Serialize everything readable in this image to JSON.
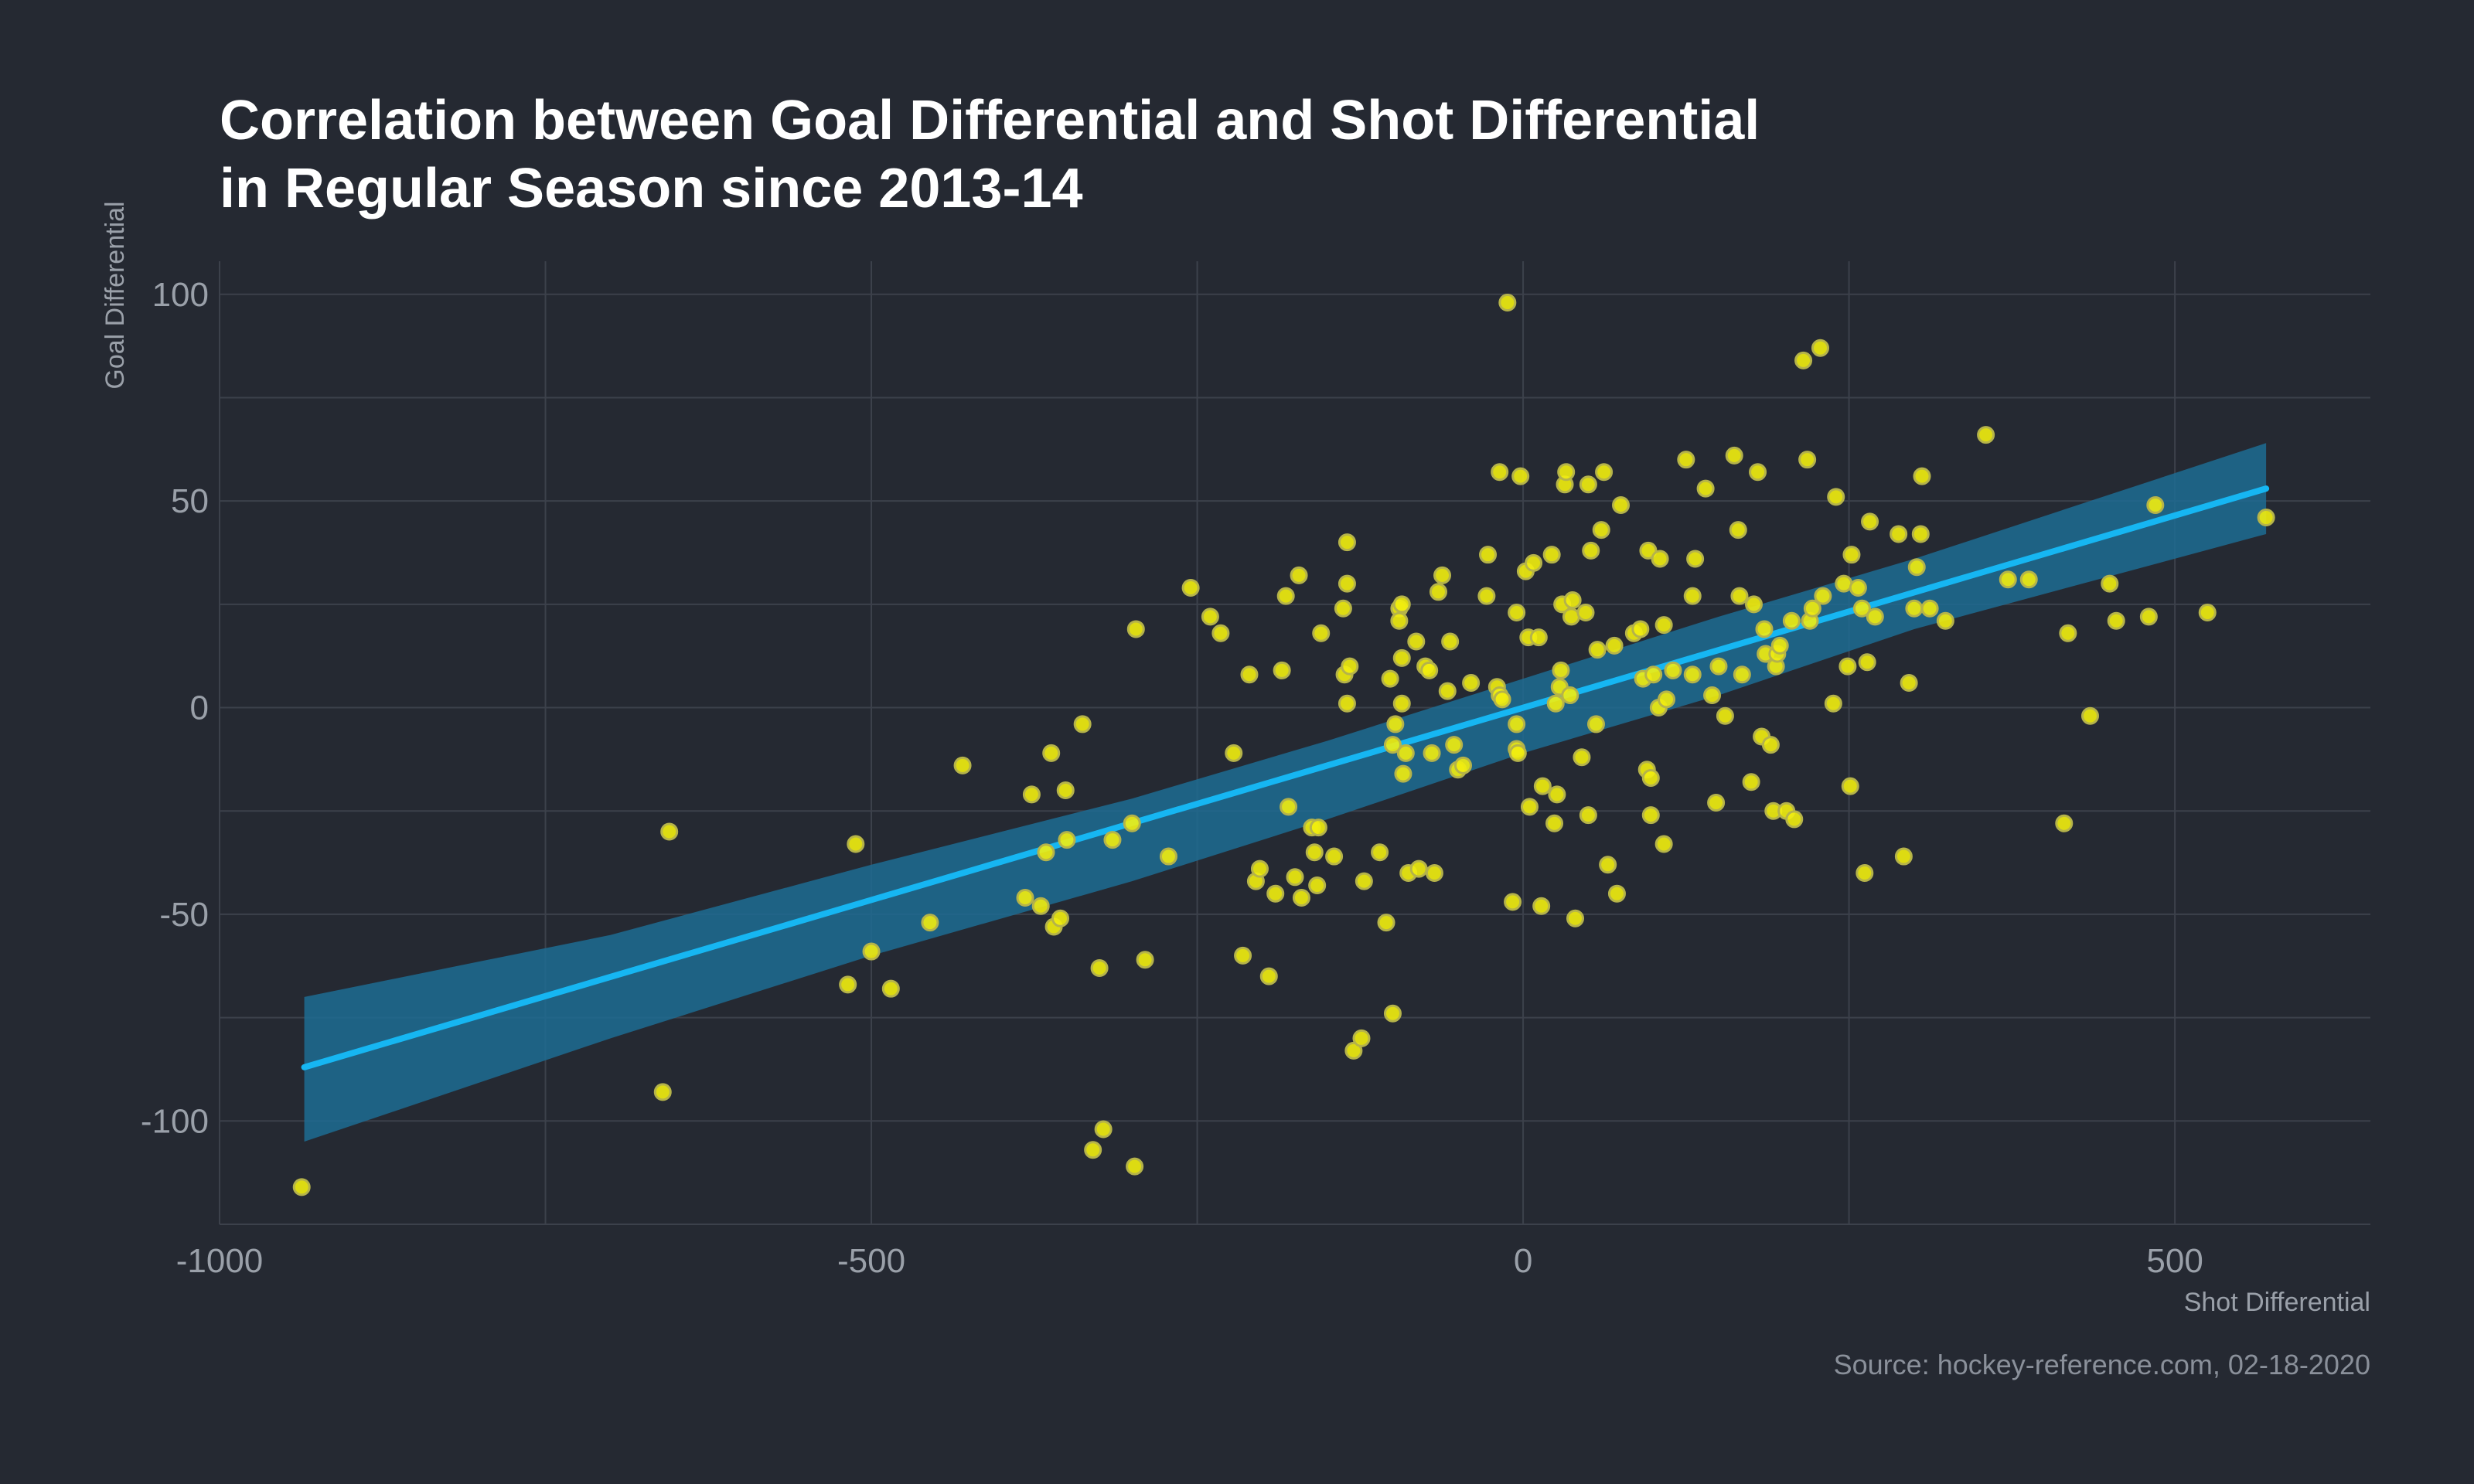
{
  "chart_data": {
    "type": "scatter",
    "title": "Correlation between Goal Differential and Shot Differential",
    "subtitle": "in Regular Season since 2013-14",
    "xlabel": "Shot Differential",
    "ylabel": "Goal Differential",
    "caption": "Source: hockey-reference.com, 02-18-2020",
    "xlim": [
      -1000,
      650
    ],
    "ylim": [
      -125,
      108
    ],
    "xticks": [
      -1000,
      -500,
      0,
      500
    ],
    "yticks": [
      100,
      50,
      0,
      -50,
      -100
    ],
    "grid": true,
    "colors": {
      "background": "#252932",
      "grid": "#3c414b",
      "points": "#f2ee0e",
      "point_outline": "#b5b34a",
      "trend": "#16b6f2",
      "band": "#1d6c93"
    },
    "points": [
      [
        -937,
        -116
      ],
      [
        -655,
        -30
      ],
      [
        -660,
        -93
      ],
      [
        -512,
        -33
      ],
      [
        -518,
        -67
      ],
      [
        -500,
        -59
      ],
      [
        -485,
        -68
      ],
      [
        -455,
        -52
      ],
      [
        -430,
        -14
      ],
      [
        -377,
        -21
      ],
      [
        -362,
        -11
      ],
      [
        -351,
        -20
      ],
      [
        -338,
        -4
      ],
      [
        -330,
        -107
      ],
      [
        -325,
        -63
      ],
      [
        -322,
        -102
      ],
      [
        -315,
        -32
      ],
      [
        -298,
        -111
      ],
      [
        -297,
        19
      ],
      [
        -290,
        -61
      ],
      [
        -370,
        -48
      ],
      [
        -382,
        -46
      ],
      [
        -366,
        -35
      ],
      [
        -360,
        -53
      ],
      [
        -350,
        -32
      ],
      [
        -300,
        -28
      ],
      [
        -355,
        -51
      ],
      [
        -272,
        -36
      ],
      [
        -255,
        29
      ],
      [
        -240,
        22
      ],
      [
        -232,
        18
      ],
      [
        -222,
        -11
      ],
      [
        -215,
        -60
      ],
      [
        -210,
        8
      ],
      [
        -205,
        -42
      ],
      [
        -202,
        -39
      ],
      [
        -195,
        -65
      ],
      [
        -190,
        -45
      ],
      [
        -185,
        9
      ],
      [
        -182,
        27
      ],
      [
        -180,
        -24
      ],
      [
        -175,
        -41
      ],
      [
        -172,
        32
      ],
      [
        -170,
        -46
      ],
      [
        -162,
        -29
      ],
      [
        -160,
        -35
      ],
      [
        -158,
        -43
      ],
      [
        -155,
        18
      ],
      [
        -157,
        -29
      ],
      [
        -145,
        -36
      ],
      [
        -138,
        24
      ],
      [
        -135,
        40
      ],
      [
        -135,
        30
      ],
      [
        -137,
        8
      ],
      [
        -135,
        1
      ],
      [
        -133,
        10
      ],
      [
        -130,
        -83
      ],
      [
        -124,
        -80
      ],
      [
        -122,
        -42
      ],
      [
        -110,
        -35
      ],
      [
        -105,
        -52
      ],
      [
        -102,
        7
      ],
      [
        -100,
        -74
      ],
      [
        -100,
        -9
      ],
      [
        -98,
        -4
      ],
      [
        -95,
        24
      ],
      [
        -93,
        25
      ],
      [
        -95,
        21
      ],
      [
        -93,
        12
      ],
      [
        -93,
        1
      ],
      [
        -92,
        -16
      ],
      [
        -90,
        -11
      ],
      [
        -88,
        -40
      ],
      [
        -82,
        16
      ],
      [
        -80,
        -39
      ],
      [
        -75,
        10
      ],
      [
        -72,
        9
      ],
      [
        -70,
        -11
      ],
      [
        -68,
        -40
      ],
      [
        -65,
        28
      ],
      [
        -62,
        32
      ],
      [
        -58,
        4
      ],
      [
        -56,
        16
      ],
      [
        -53,
        -9
      ],
      [
        -50,
        -15
      ],
      [
        -46,
        -14
      ],
      [
        -40,
        6
      ],
      [
        -28,
        27
      ],
      [
        -27,
        37
      ],
      [
        -20,
        5
      ],
      [
        -18,
        57
      ],
      [
        -18,
        3
      ],
      [
        -16,
        2
      ],
      [
        -12,
        98
      ],
      [
        -8,
        -47
      ],
      [
        -5,
        -10
      ],
      [
        -5,
        -4
      ],
      [
        -5,
        23
      ],
      [
        -4,
        -11
      ],
      [
        -2,
        56
      ],
      [
        2,
        33
      ],
      [
        4,
        17
      ],
      [
        5,
        -24
      ],
      [
        8,
        35
      ],
      [
        12,
        17
      ],
      [
        14,
        -48
      ],
      [
        15,
        -19
      ],
      [
        22,
        37
      ],
      [
        24,
        -28
      ],
      [
        25,
        1
      ],
      [
        26,
        -21
      ],
      [
        28,
        5
      ],
      [
        29,
        9
      ],
      [
        30,
        25
      ],
      [
        32,
        54
      ],
      [
        33,
        57
      ],
      [
        36,
        3
      ],
      [
        37,
        22
      ],
      [
        38,
        26
      ],
      [
        40,
        -51
      ],
      [
        45,
        -12
      ],
      [
        50,
        -26
      ],
      [
        48,
        23
      ],
      [
        50,
        54
      ],
      [
        52,
        38
      ],
      [
        56,
        -4
      ],
      [
        57,
        14
      ],
      [
        60,
        43
      ],
      [
        62,
        57
      ],
      [
        65,
        -38
      ],
      [
        70,
        15
      ],
      [
        72,
        -45
      ],
      [
        75,
        49
      ],
      [
        85,
        18
      ],
      [
        90,
        19
      ],
      [
        92,
        7
      ],
      [
        95,
        -15
      ],
      [
        96,
        38
      ],
      [
        98,
        -26
      ],
      [
        98,
        -17
      ],
      [
        100,
        8
      ],
      [
        105,
        36
      ],
      [
        104,
        0
      ],
      [
        108,
        20
      ],
      [
        108,
        -33
      ],
      [
        110,
        2
      ],
      [
        115,
        9
      ],
      [
        125,
        60
      ],
      [
        130,
        8
      ],
      [
        130,
        27
      ],
      [
        132,
        36
      ],
      [
        140,
        53
      ],
      [
        145,
        3
      ],
      [
        148,
        -23
      ],
      [
        150,
        10
      ],
      [
        155,
        -2
      ],
      [
        162,
        61
      ],
      [
        165,
        43
      ],
      [
        166,
        27
      ],
      [
        168,
        8
      ],
      [
        175,
        -18
      ],
      [
        177,
        25
      ],
      [
        180,
        57
      ],
      [
        183,
        -7
      ],
      [
        185,
        19
      ],
      [
        186,
        13
      ],
      [
        190,
        -9
      ],
      [
        192,
        -25
      ],
      [
        194,
        10
      ],
      [
        195,
        13
      ],
      [
        197,
        15
      ],
      [
        202,
        -25
      ],
      [
        206,
        21
      ],
      [
        208,
        -27
      ],
      [
        215,
        84
      ],
      [
        218,
        60
      ],
      [
        220,
        21
      ],
      [
        222,
        24
      ],
      [
        228,
        87
      ],
      [
        230,
        27
      ],
      [
        238,
        1
      ],
      [
        240,
        51
      ],
      [
        246,
        30
      ],
      [
        249,
        10
      ],
      [
        251,
        -19
      ],
      [
        252,
        37
      ],
      [
        257,
        29
      ],
      [
        260,
        24
      ],
      [
        262,
        -40
      ],
      [
        264,
        11
      ],
      [
        266,
        45
      ],
      [
        270,
        22
      ],
      [
        288,
        42
      ],
      [
        292,
        -36
      ],
      [
        296,
        6
      ],
      [
        300,
        24
      ],
      [
        302,
        34
      ],
      [
        305,
        42
      ],
      [
        306,
        56
      ],
      [
        312,
        24
      ],
      [
        324,
        21
      ],
      [
        355,
        66
      ],
      [
        372,
        31
      ],
      [
        388,
        31
      ],
      [
        415,
        -28
      ],
      [
        418,
        18
      ],
      [
        435,
        -2
      ],
      [
        450,
        30
      ],
      [
        455,
        21
      ],
      [
        480,
        22
      ],
      [
        485,
        49
      ],
      [
        525,
        23
      ],
      [
        570,
        46
      ]
    ],
    "trend": {
      "x": [
        -935,
        570
      ],
      "y": [
        -87,
        53
      ]
    },
    "band": {
      "x": [
        -935,
        -700,
        -500,
        -300,
        -150,
        0,
        150,
        300,
        570
      ],
      "lower": [
        -105,
        -80,
        -60,
        -42,
        -27,
        -11,
        3,
        19,
        42
      ],
      "upper": [
        -70,
        -55,
        -38,
        -22,
        -8,
        7,
        22,
        36,
        64
      ]
    }
  }
}
